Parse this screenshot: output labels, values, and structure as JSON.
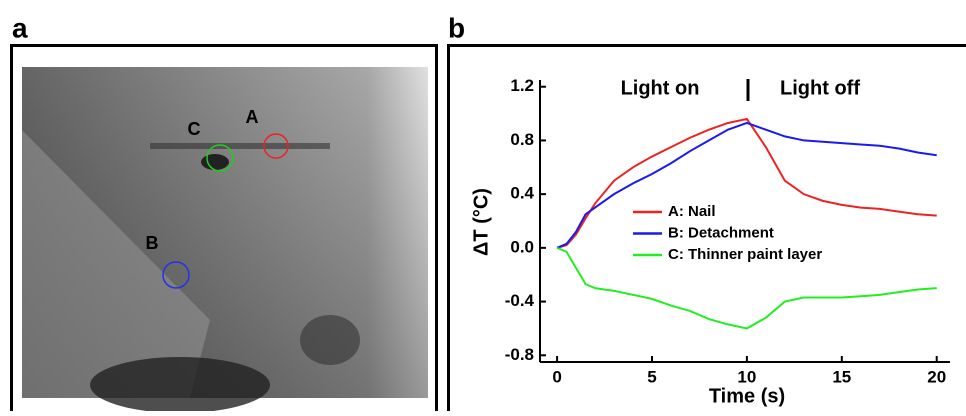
{
  "panel_labels": [
    "a",
    "b"
  ],
  "image_labels": [
    "A",
    "B",
    "C"
  ],
  "chart_data": {
    "type": "line",
    "x": [
      0,
      0.5,
      1,
      1.5,
      2,
      3,
      4,
      5,
      6,
      7,
      8,
      9,
      10,
      11,
      12,
      13,
      14,
      15,
      16,
      17,
      18,
      19,
      20
    ],
    "series": [
      {
        "name": "A: Nail",
        "color": "#ee2222",
        "values": [
          0,
          0.02,
          0.1,
          0.22,
          0.33,
          0.5,
          0.6,
          0.68,
          0.75,
          0.82,
          0.88,
          0.93,
          0.96,
          0.75,
          0.5,
          0.4,
          0.35,
          0.32,
          0.3,
          0.29,
          0.27,
          0.25,
          0.24
        ]
      },
      {
        "name": "B: Detachment",
        "color": "#1a1aee",
        "values": [
          0,
          0.03,
          0.12,
          0.25,
          0.3,
          0.4,
          0.48,
          0.55,
          0.63,
          0.72,
          0.8,
          0.88,
          0.93,
          0.88,
          0.83,
          0.8,
          0.79,
          0.78,
          0.77,
          0.76,
          0.74,
          0.71,
          0.69
        ]
      },
      {
        "name": "C: Thinner paint layer",
        "color": "#22ee22",
        "values": [
          0,
          -0.03,
          -0.15,
          -0.27,
          -0.3,
          -0.32,
          -0.35,
          -0.38,
          -0.43,
          -0.47,
          -0.53,
          -0.57,
          -0.6,
          -0.52,
          -0.4,
          -0.37,
          -0.37,
          -0.37,
          -0.36,
          -0.35,
          -0.33,
          -0.31,
          -0.3
        ]
      }
    ],
    "x_label": "Time (s)",
    "y_label": "ΔT (°C)",
    "annotations": [
      "Light on",
      "Light off"
    ],
    "xlim": [
      -0.9,
      20.7
    ],
    "ylim": [
      -0.85,
      1.25
    ],
    "xticks": [
      0,
      5,
      10,
      15,
      20
    ],
    "yticks": [
      1.2,
      0.8,
      0.4,
      {
        "value": 0,
        "label": "0.0"
      },
      -0.4,
      -0.8
    ]
  }
}
